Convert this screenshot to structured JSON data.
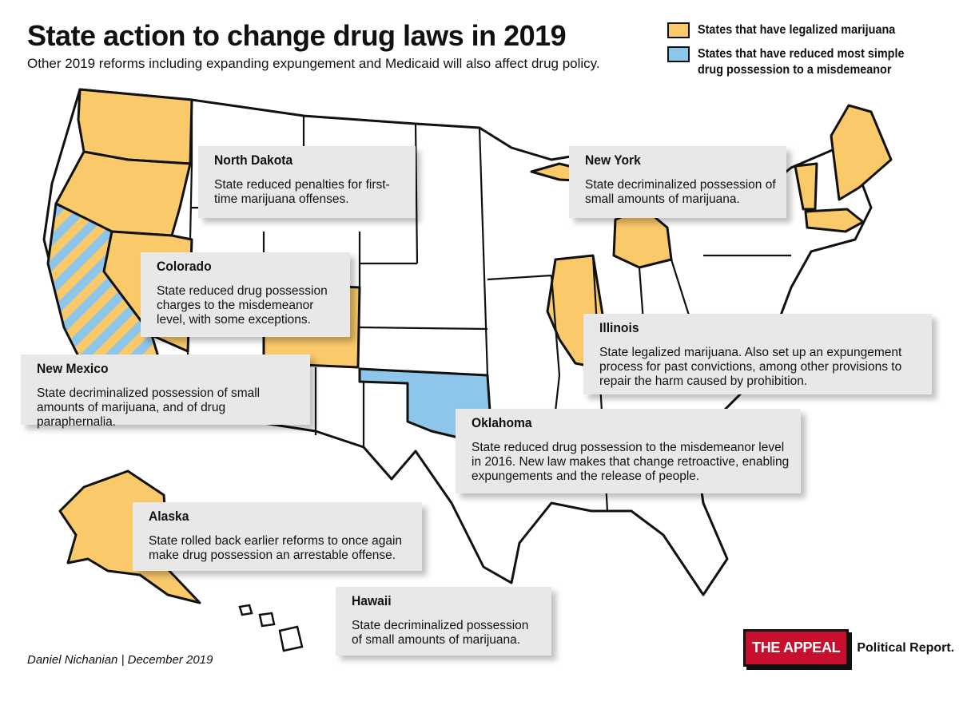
{
  "title": "State action to change drug laws in 2019",
  "subtitle": "Other 2019 reforms including expanding expungement and Medicaid will also affect drug policy.",
  "legend": [
    {
      "label": "States that have legalized marijuana",
      "color": "#f9c96a"
    },
    {
      "label": "States that have reduced most simple drug possession to a misdemeanor",
      "color": "#8ec5ea"
    }
  ],
  "colors": {
    "legalized": "#f9c96a",
    "misdemeanor": "#8ec5ea",
    "other": "#ffffff",
    "border": "#111111",
    "callout_bg": "#e8e8e9",
    "logo_red": "#c8102e"
  },
  "states": {
    "legalized": [
      "Washington",
      "Oregon",
      "California",
      "Nevada",
      "Colorado",
      "Alaska",
      "Illinois",
      "Michigan",
      "Vermont",
      "Maine",
      "Massachusetts"
    ],
    "misdemeanor": [
      "California",
      "Oklahoma"
    ]
  },
  "callouts": {
    "north_dakota": {
      "state": "North Dakota",
      "text": "State reduced penalties for first-time marijuana offenses."
    },
    "new_york": {
      "state": "New York",
      "text": "State decriminalized possession of small amounts of marijuana."
    },
    "colorado": {
      "state": "Colorado",
      "text": "State reduced drug possession charges to the misdemeanor level, with some exceptions."
    },
    "illinois": {
      "state": "Illinois",
      "text": "State legalized marijuana. Also set up an expungement process for past convictions, among other provisions to repair the harm caused by prohibition."
    },
    "new_mexico": {
      "state": "New Mexico",
      "text": "State decriminalized possession of small amounts of marijuana, and of drug paraphernalia."
    },
    "oklahoma": {
      "state": "Oklahoma",
      "text": "State reduced drug possession to the misdemeanor level in 2016. New law makes that change retroactive, enabling expungements and the release of people."
    },
    "alaska": {
      "state": "Alaska",
      "text": "State rolled back earlier reforms to once again make drug possession an arrestable offense."
    },
    "hawaii": {
      "state": "Hawaii",
      "text": "State decriminalized possession of small amounts of marijuana."
    }
  },
  "credit": "Daniel Nichanian | December 2019",
  "logo": {
    "box": "THE APPEAL",
    "text": "Political Report."
  }
}
